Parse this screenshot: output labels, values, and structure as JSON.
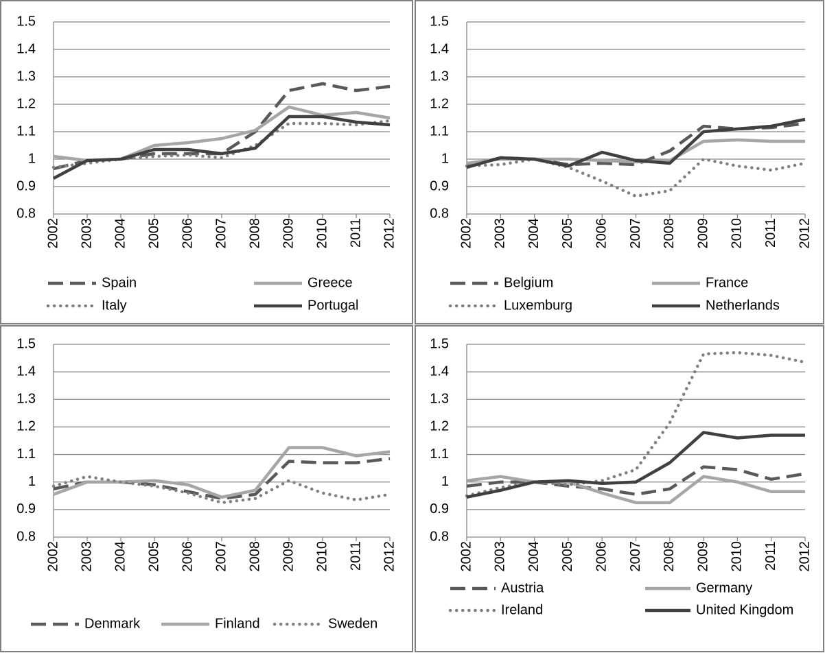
{
  "chart_data": [
    {
      "type": "line",
      "categories": [
        "2002",
        "2003",
        "2004",
        "2005",
        "2006",
        "2007",
        "2008",
        "2009",
        "2010",
        "2011",
        "2012"
      ],
      "ylim": [
        0.8,
        1.5
      ],
      "yticks": [
        0.8,
        0.9,
        1,
        1.1,
        1.2,
        1.3,
        1.4,
        1.5
      ],
      "grid": true,
      "series": [
        {
          "name": "Spain",
          "color": "#595959",
          "style": "dashed",
          "values": [
            0.965,
            0.995,
            1.0,
            1.02,
            1.02,
            1.02,
            1.1,
            1.25,
            1.275,
            1.25,
            1.265
          ]
        },
        {
          "name": "Greece",
          "color": "#a6a6a6",
          "style": "solid",
          "values": [
            1.01,
            0.995,
            1.0,
            1.05,
            1.06,
            1.075,
            1.105,
            1.19,
            1.16,
            1.17,
            1.15
          ]
        },
        {
          "name": "Italy",
          "color": "#7f7f7f",
          "style": "dotted",
          "values": [
            0.97,
            0.985,
            1.0,
            1.01,
            1.015,
            1.005,
            1.05,
            1.13,
            1.13,
            1.125,
            1.14
          ]
        },
        {
          "name": "Portugal",
          "color": "#404040",
          "style": "solid",
          "values": [
            0.93,
            0.995,
            1.0,
            1.035,
            1.035,
            1.02,
            1.04,
            1.155,
            1.155,
            1.135,
            1.125
          ]
        }
      ]
    },
    {
      "type": "line",
      "categories": [
        "2002",
        "2003",
        "2004",
        "2005",
        "2006",
        "2007",
        "2008",
        "2009",
        "2010",
        "2011",
        "2012"
      ],
      "ylim": [
        0.8,
        1.5
      ],
      "yticks": [
        0.8,
        0.9,
        1,
        1.1,
        1.2,
        1.3,
        1.4,
        1.5
      ],
      "grid": true,
      "series": [
        {
          "name": "Belgium",
          "color": "#595959",
          "style": "dashed",
          "values": [
            0.975,
            1.005,
            1.0,
            0.98,
            0.985,
            0.98,
            1.03,
            1.12,
            1.11,
            1.115,
            1.13
          ]
        },
        {
          "name": "France",
          "color": "#a6a6a6",
          "style": "solid",
          "values": [
            0.985,
            1.0,
            1.0,
            1.0,
            0.995,
            0.99,
            0.995,
            1.065,
            1.07,
            1.065,
            1.065
          ]
        },
        {
          "name": "Luxemburg",
          "color": "#7f7f7f",
          "style": "dotted",
          "values": [
            0.975,
            0.98,
            1.0,
            0.97,
            0.92,
            0.865,
            0.885,
            1.0,
            0.975,
            0.96,
            0.985
          ]
        },
        {
          "name": "Netherlands",
          "color": "#404040",
          "style": "solid",
          "values": [
            0.97,
            1.005,
            1.0,
            0.975,
            1.025,
            0.995,
            0.985,
            1.1,
            1.11,
            1.12,
            1.145
          ]
        }
      ]
    },
    {
      "type": "line",
      "categories": [
        "2002",
        "2003",
        "2004",
        "2005",
        "2006",
        "2007",
        "2008",
        "2009",
        "2010",
        "2011",
        "2012"
      ],
      "ylim": [
        0.8,
        1.5
      ],
      "yticks": [
        0.8,
        0.9,
        1,
        1.1,
        1.2,
        1.3,
        1.4,
        1.5
      ],
      "grid": true,
      "series": [
        {
          "name": "Denmark",
          "color": "#595959",
          "style": "dashed",
          "values": [
            0.975,
            1.0,
            1.0,
            0.99,
            0.965,
            0.94,
            0.955,
            1.075,
            1.07,
            1.07,
            1.085
          ]
        },
        {
          "name": "Finland",
          "color": "#a6a6a6",
          "style": "solid",
          "values": [
            0.955,
            1.0,
            1.0,
            1.005,
            0.99,
            0.945,
            0.97,
            1.125,
            1.125,
            1.095,
            1.11
          ]
        },
        {
          "name": "Sweden",
          "color": "#7f7f7f",
          "style": "dotted",
          "values": [
            0.985,
            1.02,
            1.0,
            0.985,
            0.96,
            0.925,
            0.94,
            1.005,
            0.96,
            0.935,
            0.955
          ]
        }
      ]
    },
    {
      "type": "line",
      "categories": [
        "2002",
        "2003",
        "2004",
        "2005",
        "2006",
        "2007",
        "2008",
        "2009",
        "2010",
        "2011",
        "2012"
      ],
      "ylim": [
        0.8,
        1.5
      ],
      "yticks": [
        0.8,
        0.9,
        1,
        1.1,
        1.2,
        1.3,
        1.4,
        1.5
      ],
      "grid": true,
      "series": [
        {
          "name": "Austria",
          "color": "#595959",
          "style": "dashed",
          "values": [
            0.985,
            1.0,
            1.0,
            0.985,
            0.975,
            0.955,
            0.975,
            1.055,
            1.045,
            1.01,
            1.03
          ]
        },
        {
          "name": "Germany",
          "color": "#a6a6a6",
          "style": "solid",
          "values": [
            1.005,
            1.02,
            1.0,
            1.0,
            0.96,
            0.925,
            0.925,
            1.02,
            1.0,
            0.965,
            0.965
          ]
        },
        {
          "name": "Ireland",
          "color": "#7f7f7f",
          "style": "dotted",
          "values": [
            0.95,
            0.98,
            1.0,
            0.99,
            1.005,
            1.045,
            1.215,
            1.465,
            1.47,
            1.46,
            1.435
          ]
        },
        {
          "name": "United Kingdom",
          "color": "#404040",
          "style": "solid",
          "values": [
            0.945,
            0.97,
            1.0,
            1.005,
            0.995,
            1.0,
            1.07,
            1.18,
            1.16,
            1.17,
            1.17
          ]
        }
      ]
    }
  ]
}
